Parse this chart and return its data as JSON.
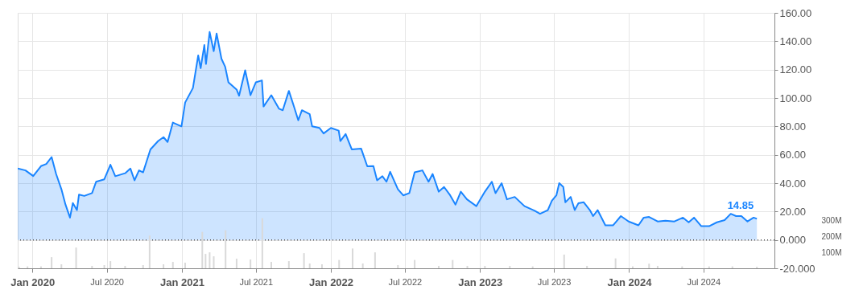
{
  "chart_data": {
    "type": "area",
    "xlim": [
      "2019-11-26",
      "2024-12-22"
    ],
    "xticks": [
      {
        "value": "2020-01-01",
        "label": "Jan 2020"
      },
      {
        "value": "2020-07-01",
        "label": "Jul 2020"
      },
      {
        "value": "2021-01-01",
        "label": "Jan 2021"
      },
      {
        "value": "2021-07-01",
        "label": "Jul 2021"
      },
      {
        "value": "2022-01-01",
        "label": "Jan 2022"
      },
      {
        "value": "2022-07-01",
        "label": "Jul 2022"
      },
      {
        "value": "2023-01-01",
        "label": "Jan 2023"
      },
      {
        "value": "2023-07-01",
        "label": "Jul 2023"
      },
      {
        "value": "2024-01-01",
        "label": "Jan 2024"
      },
      {
        "value": "2024-07-01",
        "label": "Jul 2024"
      }
    ],
    "ylim": [
      -20,
      160
    ],
    "yticks": [
      {
        "value": -20,
        "label": "-20.000"
      },
      {
        "value": 0,
        "label": "0.000"
      },
      {
        "value": 20,
        "label": "20.00"
      },
      {
        "value": 40,
        "label": "40.00"
      },
      {
        "value": 60,
        "label": "60.00"
      },
      {
        "value": 80,
        "label": "80.00"
      },
      {
        "value": 100,
        "label": "100.00"
      },
      {
        "value": 120,
        "label": "120.00"
      },
      {
        "value": 140,
        "label": "140.00"
      },
      {
        "value": 160,
        "label": "160.00"
      }
    ],
    "y2lim": [
      0,
      1600
    ],
    "y2ticks": [
      {
        "value": 100,
        "label": "100M"
      },
      {
        "value": 200,
        "label": "200M"
      },
      {
        "value": 300,
        "label": "300M"
      }
    ],
    "grid": true,
    "ref_lines": [
      {
        "axis": "y",
        "value": 0,
        "line_style": "dotted",
        "color": "#555555"
      }
    ],
    "annotations": [
      {
        "text": "14.85",
        "x": "2024-11-09",
        "y": 14.85
      }
    ],
    "series": [
      {
        "color": "#1a85ff",
        "x": [
          "2019-11-26",
          "2019-12-15",
          "2020-01-03",
          "2020-01-22",
          "2020-02-04",
          "2020-02-17",
          "2020-02-28",
          "2020-03-12",
          "2020-03-22",
          "2020-04-02",
          "2020-04-09",
          "2020-04-19",
          "2020-04-24",
          "2020-05-07",
          "2020-05-26",
          "2020-06-05",
          "2020-06-25",
          "2020-07-10",
          "2020-07-22",
          "2020-08-15",
          "2020-08-28",
          "2020-09-07",
          "2020-09-18",
          "2020-09-28",
          "2020-10-07",
          "2020-10-16",
          "2020-11-04",
          "2020-11-17",
          "2020-11-27",
          "2020-12-10",
          "2020-12-31",
          "2021-01-09",
          "2021-01-28",
          "2021-02-10",
          "2021-02-16",
          "2021-02-25",
          "2021-03-01",
          "2021-03-10",
          "2021-03-20",
          "2021-03-27",
          "2021-04-08",
          "2021-04-17",
          "2021-04-25",
          "2021-05-15",
          "2021-05-21",
          "2021-06-05",
          "2021-06-18",
          "2021-07-01",
          "2021-07-16",
          "2021-07-20",
          "2021-08-08",
          "2021-08-27",
          "2021-09-05",
          "2021-09-20",
          "2021-10-03",
          "2021-10-13",
          "2021-10-22",
          "2021-11-10",
          "2021-11-16",
          "2021-12-04",
          "2021-12-14",
          "2022-01-01",
          "2022-01-20",
          "2022-01-24",
          "2022-02-06",
          "2022-02-21",
          "2022-03-16",
          "2022-03-31",
          "2022-04-15",
          "2022-04-24",
          "2022-05-07",
          "2022-05-17",
          "2022-05-26",
          "2022-06-14",
          "2022-06-27",
          "2022-07-12",
          "2022-07-25",
          "2022-08-13",
          "2022-08-28",
          "2022-09-07",
          "2022-09-22",
          "2022-10-05",
          "2022-10-20",
          "2022-11-02",
          "2022-11-15",
          "2022-11-30",
          "2022-12-23",
          "2023-01-13",
          "2023-01-30",
          "2023-02-08",
          "2023-02-23",
          "2023-03-08",
          "2023-03-27",
          "2023-04-20",
          "2023-05-15",
          "2023-05-28",
          "2023-06-16",
          "2023-06-26",
          "2023-07-07",
          "2023-07-14",
          "2023-07-24",
          "2023-07-29",
          "2023-08-11",
          "2023-08-21",
          "2023-08-30",
          "2023-09-12",
          "2023-09-27",
          "2023-10-05",
          "2023-10-16",
          "2023-11-04",
          "2023-11-23",
          "2023-12-12",
          "2023-12-31",
          "2024-01-24",
          "2024-02-06",
          "2024-02-19",
          "2024-03-11",
          "2024-03-30",
          "2024-04-21",
          "2024-05-12",
          "2024-05-26",
          "2024-06-08",
          "2024-06-26",
          "2024-07-15",
          "2024-08-03",
          "2024-08-22",
          "2024-09-06",
          "2024-09-19",
          "2024-10-02",
          "2024-10-17",
          "2024-11-01",
          "2024-11-09"
        ],
        "values": [
          50.3,
          49,
          45,
          52,
          53.5,
          58.4,
          46.5,
          35.7,
          24.9,
          15.7,
          26,
          21,
          31.9,
          31,
          33,
          41,
          42.7,
          53,
          44.9,
          47,
          50.3,
          42,
          49,
          47.6,
          55.7,
          63.8,
          69.7,
          72.4,
          69,
          82.7,
          80,
          96.8,
          107,
          130,
          121,
          137.3,
          124,
          146.5,
          133,
          145.4,
          127.6,
          122,
          111,
          106,
          101.6,
          119.5,
          102,
          111,
          112.4,
          94,
          102,
          92.4,
          91.4,
          105,
          93.5,
          84.3,
          91.4,
          88.6,
          80,
          78.9,
          75,
          78.9,
          77,
          69.7,
          74.6,
          63.8,
          64.3,
          51.9,
          52,
          42,
          44.9,
          41,
          48,
          35.7,
          31.4,
          33,
          47.6,
          49,
          41,
          46.5,
          34,
          37.3,
          31.4,
          24.9,
          34,
          28.6,
          23.8,
          34,
          41,
          33,
          40,
          28.6,
          30.3,
          23.8,
          20.5,
          18.4,
          21,
          27.6,
          31.4,
          40,
          37.3,
          26.5,
          30.3,
          21,
          25.9,
          26.5,
          21,
          16.8,
          21,
          10.3,
          10.3,
          16.8,
          13,
          10.3,
          15.7,
          16.2,
          13,
          13.5,
          13,
          15.7,
          12.4,
          15.7,
          9.7,
          9.7,
          12.4,
          14,
          18.4,
          16.8,
          16.8,
          13,
          15.7,
          14.85
        ]
      },
      {
        "type": "bar",
        "axis": "y2",
        "color": "#d9d9d9",
        "x": [
          "2019-11-29",
          "2019-12-20",
          "2020-01-22",
          "2020-02-17",
          "2020-03-12",
          "2020-04-17",
          "2020-05-26",
          "2020-06-25",
          "2020-07-10",
          "2020-08-15",
          "2020-09-28",
          "2020-10-14",
          "2020-11-17",
          "2020-12-10",
          "2021-01-09",
          "2021-02-20",
          "2021-02-28",
          "2021-03-10",
          "2021-03-20",
          "2021-04-18",
          "2021-05-15",
          "2021-06-18",
          "2021-07-17",
          "2021-08-08",
          "2021-09-20",
          "2021-10-27",
          "2021-11-10",
          "2021-12-10",
          "2022-01-21",
          "2022-02-23",
          "2022-03-20",
          "2022-04-19",
          "2022-06-14",
          "2022-07-25",
          "2022-09-22",
          "2022-10-26",
          "2022-12-01",
          "2023-01-13",
          "2023-03-15",
          "2023-05-10",
          "2023-07-26",
          "2023-09-20",
          "2023-11-29",
          "2024-01-10",
          "2024-02-19",
          "2024-03-11",
          "2024-05-10",
          "2024-07-15",
          "2024-09-10",
          "2024-11-09"
        ],
        "values": [
          10,
          12,
          12,
          70,
          25,
          130,
          15,
          20,
          45,
          15,
          20,
          205,
          25,
          40,
          35,
          228,
          90,
          100,
          75,
          238,
          60,
          55,
          314,
          40,
          45,
          95,
          30,
          25,
          52,
          124,
          30,
          100,
          20,
          52,
          15,
          52,
          15,
          15,
          15,
          12,
          86,
          15,
          62,
          12,
          29,
          15,
          12,
          12,
          12,
          10
        ]
      }
    ]
  }
}
